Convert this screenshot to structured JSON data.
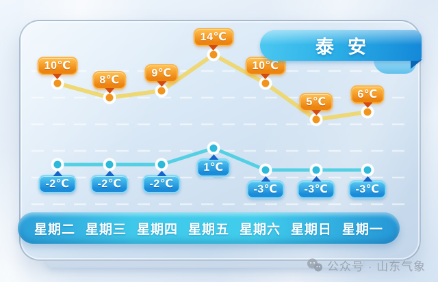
{
  "header": {
    "title": "泰安"
  },
  "chart_data": {
    "type": "line",
    "title": "泰安",
    "categories": [
      "星期二",
      "星期三",
      "星期四",
      "星期五",
      "星期六",
      "星期日",
      "星期一"
    ],
    "series": [
      {
        "name": "high_temp",
        "unit": "℃",
        "values": [
          10,
          8,
          9,
          14,
          10,
          5,
          6
        ],
        "labels": [
          "10℃",
          "8℃",
          "9℃",
          "14℃",
          "10℃",
          "5℃",
          "6℃"
        ],
        "line_color": "#eed76e",
        "marker_color": "#f0941d",
        "badge_top_color": "#ffc04e",
        "badge_bottom_color": "#ee8410",
        "pointer_color": "#d24b10"
      },
      {
        "name": "low_temp",
        "unit": "℃",
        "values": [
          -2,
          -2,
          -2,
          1,
          -3,
          -3,
          -3
        ],
        "labels": [
          "-2℃",
          "-2℃",
          "-2℃",
          "1℃",
          "-3℃",
          "-3℃",
          "-3℃"
        ],
        "line_color": "#4ccfe1",
        "marker_color": "#2db9da",
        "badge_top_color": "#55c9f2",
        "badge_bottom_color": "#1b8cd9",
        "pointer_color": "#1566c8"
      }
    ],
    "grid": "dashed-horizontal",
    "legend": "none",
    "y_axis_visible": false,
    "x_axis_labels_position": "bottom-bar"
  },
  "footer": {
    "watermark_icon": "wechat-icon",
    "watermark_text": "公众号 · 山东气象"
  },
  "colors": {
    "ribbon_left": "#4cc8f1",
    "ribbon_right": "#1488d8",
    "day_bar_center": "#41cdec",
    "day_bar_edge": "#2596d6",
    "panel_bg_top": "#eaf4fc",
    "panel_bg_bottom": "#c3d6ea",
    "grid_line": "#ffffff",
    "watermark_gray": "#96a1ac"
  }
}
